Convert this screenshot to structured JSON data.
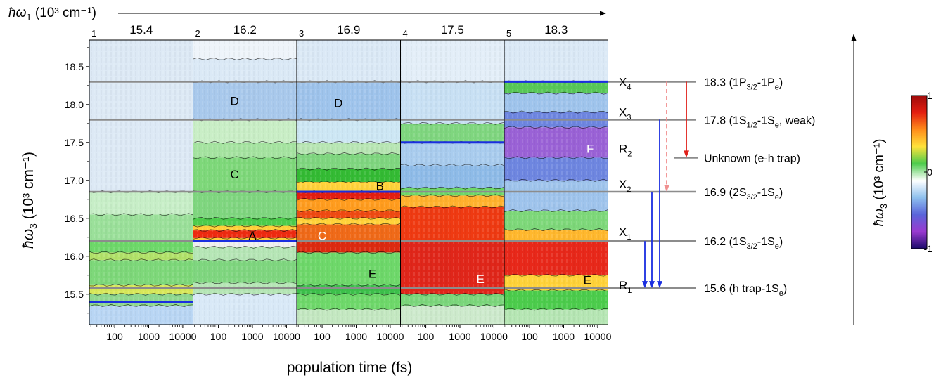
{
  "chart_data": {
    "type": "heatmap",
    "title": "",
    "omega1_axis": {
      "label_symbol": "ħω",
      "label_sub": "1",
      "label_unit": " (10³ cm⁻¹)"
    },
    "ylabel": {
      "symbol": "ħω",
      "sub": "3",
      "unit": " (10³ cm⁻¹)"
    },
    "xlabel": "population time (fs)",
    "xscale": "log",
    "xlim": [
      18,
      20000
    ],
    "ylim": [
      15.1,
      18.85
    ],
    "xticks": [
      {
        "value": 100,
        "label": "100"
      },
      {
        "value": 1000,
        "label": "1000"
      },
      {
        "value": 10000,
        "label": "10000"
      }
    ],
    "yticks": [
      {
        "value": 15.5,
        "label": "15.5"
      },
      {
        "value": 16.0,
        "label": "16.0"
      },
      {
        "value": 16.5,
        "label": "16.5"
      },
      {
        "value": 17.0,
        "label": "17.0"
      },
      {
        "value": 17.5,
        "label": "17.5"
      },
      {
        "value": 18.0,
        "label": "18.0"
      },
      {
        "value": 18.5,
        "label": "18.5"
      }
    ],
    "panels": [
      {
        "index": "1",
        "omega1": "15.4",
        "omega1_value": 15.4,
        "bands": [
          {
            "y1": 15.1,
            "y2": 15.35,
            "color": "#b9d6f4"
          },
          {
            "y1": 15.35,
            "y2": 15.5,
            "color": "#8fd88f"
          },
          {
            "y1": 15.5,
            "y2": 15.62,
            "color": "#d8e85a"
          },
          {
            "y1": 15.62,
            "y2": 15.95,
            "color": "#7ed87a"
          },
          {
            "y1": 15.95,
            "y2": 16.05,
            "color": "#b2e26a"
          },
          {
            "y1": 16.05,
            "y2": 16.2,
            "color": "#6ed86a"
          },
          {
            "y1": 16.2,
            "y2": 16.55,
            "color": "#9be09a"
          },
          {
            "y1": 16.55,
            "y2": 16.85,
            "color": "#c7eec7"
          },
          {
            "y1": 16.85,
            "y2": 18.85,
            "color": "#dde9f5"
          }
        ],
        "labels": []
      },
      {
        "index": "2",
        "omega1": "16.2",
        "omega1_value": 16.2,
        "bands": [
          {
            "y1": 15.1,
            "y2": 15.5,
            "color": "#d9e9f7"
          },
          {
            "y1": 15.5,
            "y2": 15.65,
            "color": "#b6e6b6"
          },
          {
            "y1": 15.65,
            "y2": 15.95,
            "color": "#7fd67f"
          },
          {
            "y1": 15.95,
            "y2": 16.12,
            "color": "#b6e6b6"
          },
          {
            "y1": 16.12,
            "y2": 16.2,
            "color": "#f0f0f0"
          },
          {
            "y1": 16.2,
            "y2": 16.24,
            "color": "#ffcf3a"
          },
          {
            "y1": 16.24,
            "y2": 16.34,
            "color": "#ee2a10"
          },
          {
            "y1": 16.34,
            "y2": 16.4,
            "color": "#ffd03a"
          },
          {
            "y1": 16.4,
            "y2": 16.5,
            "color": "#4ccc4c"
          },
          {
            "y1": 16.5,
            "y2": 16.85,
            "color": "#7fd67f"
          },
          {
            "y1": 16.85,
            "y2": 17.3,
            "color": "#7ed87a"
          },
          {
            "y1": 17.3,
            "y2": 17.5,
            "color": "#a5e3a0"
          },
          {
            "y1": 17.5,
            "y2": 17.8,
            "color": "#c9eec6"
          },
          {
            "y1": 17.8,
            "y2": 18.3,
            "color": "#a9c9ec"
          },
          {
            "y1": 18.3,
            "y2": 18.6,
            "color": "#dbe9f6"
          },
          {
            "y1": 18.6,
            "y2": 18.85,
            "color": "#eef4fa"
          }
        ],
        "labels": [
          {
            "text": "D",
            "t": 300,
            "y": 18.05,
            "color": "#000000"
          },
          {
            "text": "C",
            "t": 300,
            "y": 17.08,
            "color": "#000000"
          },
          {
            "text": "A",
            "t": 1000,
            "y": 16.27,
            "color": "#000000"
          }
        ]
      },
      {
        "index": "3",
        "omega1": "16.9",
        "omega1_value": 16.9,
        "bands": [
          {
            "y1": 15.1,
            "y2": 15.3,
            "color": "#c4e8c1"
          },
          {
            "y1": 15.3,
            "y2": 15.5,
            "color": "#6ed86a"
          },
          {
            "y1": 15.5,
            "y2": 15.62,
            "color": "#3dc04b"
          },
          {
            "y1": 15.62,
            "y2": 16.05,
            "color": "#6ed86a"
          },
          {
            "y1": 16.05,
            "y2": 16.2,
            "color": "#dd2a10"
          },
          {
            "y1": 16.2,
            "y2": 16.42,
            "color": "#f06a18"
          },
          {
            "y1": 16.42,
            "y2": 16.5,
            "color": "#ffd23a"
          },
          {
            "y1": 16.5,
            "y2": 16.6,
            "color": "#ef4a12"
          },
          {
            "y1": 16.6,
            "y2": 16.75,
            "color": "#ff9c1e"
          },
          {
            "y1": 16.75,
            "y2": 16.85,
            "color": "#e41e10"
          },
          {
            "y1": 16.85,
            "y2": 16.98,
            "color": "#ffd23a"
          },
          {
            "y1": 16.98,
            "y2": 17.15,
            "color": "#34bb34"
          },
          {
            "y1": 17.15,
            "y2": 17.35,
            "color": "#7fd67f"
          },
          {
            "y1": 17.35,
            "y2": 17.5,
            "color": "#b8e6b4"
          },
          {
            "y1": 17.5,
            "y2": 17.8,
            "color": "#cde7f4"
          },
          {
            "y1": 17.8,
            "y2": 18.3,
            "color": "#9fc4ec"
          },
          {
            "y1": 18.3,
            "y2": 18.85,
            "color": "#dbe9f6"
          }
        ],
        "labels": [
          {
            "text": "D",
            "t": 300,
            "y": 18.02,
            "color": "#000000"
          },
          {
            "text": "B",
            "t": 5000,
            "y": 16.93,
            "color": "#000000"
          },
          {
            "text": "C",
            "t": 100,
            "y": 16.27,
            "color": "#ffffff"
          },
          {
            "text": "E",
            "t": 3000,
            "y": 15.77,
            "color": "#000000"
          }
        ]
      },
      {
        "index": "4",
        "omega1": "17.5",
        "omega1_value": 17.5,
        "bands": [
          {
            "y1": 15.1,
            "y2": 15.35,
            "color": "#cdeacc"
          },
          {
            "y1": 15.35,
            "y2": 15.5,
            "color": "#7bd67b"
          },
          {
            "y1": 15.5,
            "y2": 16.2,
            "color": "#e0261a"
          },
          {
            "y1": 16.2,
            "y2": 16.65,
            "color": "#ef3a12"
          },
          {
            "y1": 16.65,
            "y2": 16.8,
            "color": "#ffb22e"
          },
          {
            "y1": 16.8,
            "y2": 16.9,
            "color": "#6ed86a"
          },
          {
            "y1": 16.9,
            "y2": 17.2,
            "color": "#8ebbe8"
          },
          {
            "y1": 17.2,
            "y2": 17.5,
            "color": "#a9ccee"
          },
          {
            "y1": 17.5,
            "y2": 17.75,
            "color": "#7fd67f"
          },
          {
            "y1": 17.75,
            "y2": 18.3,
            "color": "#c8e0f4"
          },
          {
            "y1": 18.3,
            "y2": 18.85,
            "color": "#e3eef8"
          }
        ],
        "labels": [
          {
            "text": "E",
            "t": 4000,
            "y": 15.7,
            "color": "#ffffff"
          }
        ]
      },
      {
        "index": "5",
        "omega1": "18.3",
        "omega1_value": 18.3,
        "bands": [
          {
            "y1": 15.1,
            "y2": 15.3,
            "color": "#b6e6b4"
          },
          {
            "y1": 15.3,
            "y2": 15.55,
            "color": "#4ccc4c"
          },
          {
            "y1": 15.55,
            "y2": 15.75,
            "color": "#ffd23a"
          },
          {
            "y1": 15.75,
            "y2": 16.2,
            "color": "#e8281a"
          },
          {
            "y1": 16.2,
            "y2": 16.35,
            "color": "#ffb82e"
          },
          {
            "y1": 16.35,
            "y2": 16.6,
            "color": "#7ed87a"
          },
          {
            "y1": 16.6,
            "y2": 17.0,
            "color": "#9fc4ec"
          },
          {
            "y1": 17.0,
            "y2": 17.3,
            "color": "#6e86e0"
          },
          {
            "y1": 17.3,
            "y2": 17.7,
            "color": "#9a62d6"
          },
          {
            "y1": 17.7,
            "y2": 17.9,
            "color": "#6e86e0"
          },
          {
            "y1": 17.9,
            "y2": 18.15,
            "color": "#9fc4ec"
          },
          {
            "y1": 18.15,
            "y2": 18.3,
            "color": "#58c858"
          },
          {
            "y1": 18.3,
            "y2": 18.85,
            "color": "#dbe9f6"
          }
        ],
        "labels": [
          {
            "text": "F",
            "t": 6000,
            "y": 17.42,
            "color": "#ffffff"
          },
          {
            "text": "E",
            "t": 5000,
            "y": 15.69,
            "color": "#000000"
          }
        ]
      }
    ],
    "blue_lines": [
      {
        "panel": 1,
        "y": 15.4
      },
      {
        "panel": 2,
        "y": 16.2
      },
      {
        "panel": 3,
        "y": 16.85
      },
      {
        "panel": 4,
        "y": 17.5
      },
      {
        "panel": 5,
        "y": 18.3
      }
    ],
    "levels": [
      {
        "y": 18.3,
        "main": "18.3 (1P",
        "sub1": "3/2",
        "mid": "-1P",
        "sub2": "e",
        "tail": ")"
      },
      {
        "y": 17.8,
        "main": "17.8 (1S",
        "sub1": "1/2",
        "mid": "-1S",
        "sub2": "e",
        "tail": ", weak)"
      },
      {
        "y": 16.85,
        "main": "16.9 (2S",
        "sub1": "3/2",
        "mid": "-1S",
        "sub2": "e",
        "tail": ")"
      },
      {
        "y": 16.2,
        "main": "16.2 (1S",
        "sub1": "3/2",
        "mid": "-1S",
        "sub2": "e",
        "tail": ")"
      },
      {
        "y": 15.58,
        "main": "15.6 (h trap-1S",
        "sub1": "",
        "mid": "",
        "sub2": "e",
        "tail": ")"
      }
    ],
    "unknown_level": {
      "y": 17.3,
      "label": "Unknown (e-h trap)"
    },
    "region_labels": [
      {
        "base": "X",
        "sub": "4",
        "y": 18.3
      },
      {
        "base": "X",
        "sub": "3",
        "y": 17.9
      },
      {
        "base": "R",
        "sub": "2",
        "y": 17.42
      },
      {
        "base": "X",
        "sub": "2",
        "y": 16.95
      },
      {
        "base": "X",
        "sub": "1",
        "y": 16.32
      },
      {
        "base": "R",
        "sub": "1",
        "y": 15.62
      }
    ],
    "arrows": [
      {
        "from": 18.3,
        "to": 17.3,
        "color": "#e0201a",
        "style": "solid"
      },
      {
        "from": 18.3,
        "to": 16.85,
        "color": "#f09090",
        "style": "dashed"
      },
      {
        "from": 17.8,
        "to": 15.58,
        "color": "#1a2ee0",
        "style": "solid"
      },
      {
        "from": 16.85,
        "to": 15.58,
        "color": "#1a2ee0",
        "style": "solid"
      },
      {
        "from": 16.2,
        "to": 15.58,
        "color": "#1a2ee0",
        "style": "solid"
      }
    ],
    "colorbar": {
      "label": {
        "symbol": "ħω",
        "sub": "3",
        "unit": " (10³ cm⁻¹)"
      },
      "ticks": [
        {
          "value": 1,
          "label": "1"
        },
        {
          "value": 0,
          "label": "0"
        },
        {
          "value": -1,
          "label": "-1"
        }
      ],
      "stops": [
        "#9e0a0a",
        "#e41e10",
        "#ff8c1a",
        "#ffe23a",
        "#4ccc4c",
        "#ffffff",
        "#8ec0ee",
        "#5a64da",
        "#9a3ad0",
        "#1a0a6a"
      ]
    }
  }
}
